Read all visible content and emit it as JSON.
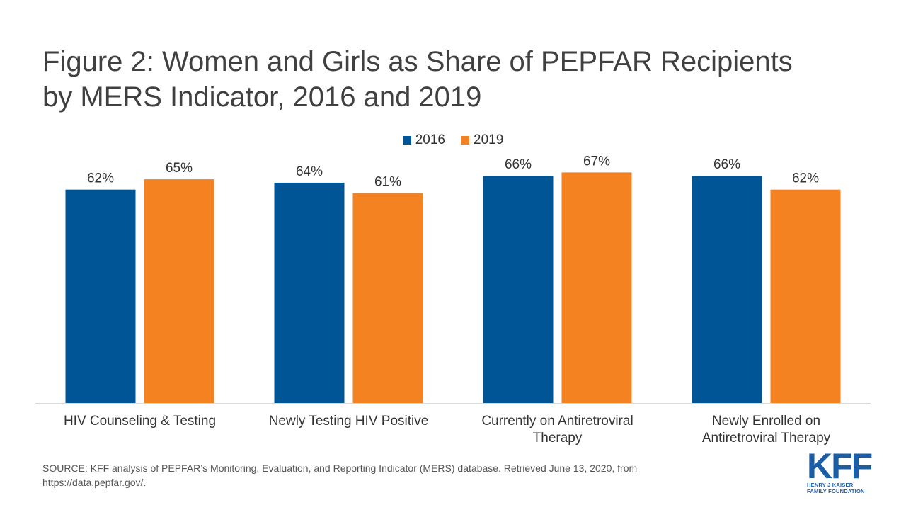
{
  "title_lines": [
    "Figure 2: Women and Girls as Share of PEPFAR Recipients",
    "by MERS Indicator, 2016 and 2019"
  ],
  "colors": {
    "series_2016": "#005596",
    "series_2019": "#f58220",
    "axis": "#d9d9d9"
  },
  "chart_data": {
    "type": "bar",
    "title": "Figure 2: Women and Girls as Share of PEPFAR Recipients by MERS Indicator, 2016 and 2019",
    "categories": [
      [
        "HIV Counseling & Testing"
      ],
      [
        "Newly Testing HIV Positive"
      ],
      [
        "Currently on Antiretroviral",
        "Therapy"
      ],
      [
        "Newly Enrolled on",
        "Antiretroviral Therapy"
      ]
    ],
    "series": [
      {
        "name": "2016",
        "values": [
          62,
          64,
          66,
          66
        ],
        "labels": [
          "62%",
          "64%",
          "66%",
          "66%"
        ]
      },
      {
        "name": "2019",
        "values": [
          65,
          61,
          67,
          62
        ],
        "labels": [
          "65%",
          "61%",
          "67%",
          "62%"
        ]
      }
    ],
    "legend_position": "top-center",
    "grid": false,
    "unit": "%"
  },
  "source": {
    "text": "SOURCE: KFF analysis of PEPFAR’s Monitoring, Evaluation, and Reporting Indicator (MERS) database. Retrieved June 13, 2020, from",
    "link_text": "https://data.pepfar.gov/",
    "suffix": "."
  },
  "logo": {
    "mark": "KFF",
    "subtitle": "HENRY J KAISER\nFAMILY FOUNDATION"
  }
}
